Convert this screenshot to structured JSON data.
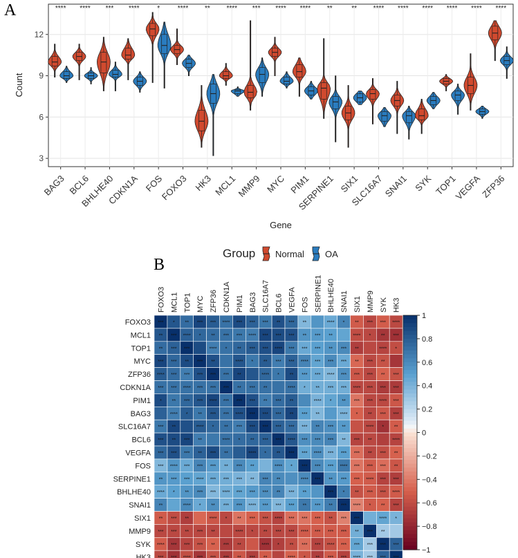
{
  "panel_a_label": "A",
  "panel_b_label": "B",
  "chart_data": [
    {
      "type": "violin",
      "panel": "A",
      "xlabel": "Gene",
      "ylabel": "Count",
      "ylim": [
        2.4,
        14.2
      ],
      "yticks": [
        3,
        6,
        9,
        12
      ],
      "legend_title": "Group",
      "legend_position": "bottom",
      "series": [
        {
          "name": "Normal",
          "color": "#d04a2f"
        },
        {
          "name": "OA",
          "color": "#2a7cbf"
        }
      ],
      "categories": [
        "BAG3",
        "BCL6",
        "BHLHE40",
        "CDKN1A",
        "FOS",
        "FOXO3",
        "HK3",
        "MCL1",
        "MMP9",
        "MYC",
        "PIM1",
        "SERPINE1",
        "SIX1",
        "SLC16A7",
        "SNAI1",
        "SYK",
        "TOP1",
        "VEGFA",
        "ZFP36"
      ],
      "significance": [
        "****",
        "****",
        "***",
        "****",
        "*",
        "****",
        "**",
        "****",
        "***",
        "****",
        "****",
        "**",
        "**",
        "****",
        "****",
        "****",
        "****",
        "****",
        "****"
      ],
      "normal": [
        {
          "min": 8.9,
          "q1": 9.7,
          "median": 10.0,
          "q3": 10.4,
          "max": 11.3
        },
        {
          "min": 8.7,
          "q1": 10.1,
          "median": 10.4,
          "q3": 10.7,
          "max": 11.3
        },
        {
          "min": 7.9,
          "q1": 9.2,
          "median": 10.0,
          "q3": 10.7,
          "max": 11.8
        },
        {
          "min": 8.7,
          "q1": 10.2,
          "median": 10.5,
          "q3": 11.0,
          "max": 11.7
        },
        {
          "min": 8.5,
          "q1": 11.9,
          "median": 12.4,
          "q3": 12.8,
          "max": 13.6
        },
        {
          "min": 9.8,
          "q1": 10.6,
          "median": 10.9,
          "q3": 11.2,
          "max": 12.4
        },
        {
          "min": 3.8,
          "q1": 5.0,
          "median": 5.7,
          "q3": 6.5,
          "max": 8.3
        },
        {
          "min": 8.3,
          "q1": 8.8,
          "median": 9.0,
          "q3": 9.3,
          "max": 9.9
        },
        {
          "min": 6.5,
          "q1": 7.4,
          "median": 7.8,
          "q3": 8.3,
          "max": 13.0
        },
        {
          "min": 9.0,
          "q1": 10.4,
          "median": 10.7,
          "q3": 11.0,
          "max": 11.8
        },
        {
          "min": 7.5,
          "q1": 8.9,
          "median": 9.3,
          "q3": 9.8,
          "max": 10.3
        },
        {
          "min": 5.9,
          "q1": 7.3,
          "median": 8.1,
          "q3": 8.5,
          "max": 11.7
        },
        {
          "min": 3.8,
          "q1": 5.8,
          "median": 6.3,
          "q3": 6.8,
          "max": 8.3
        },
        {
          "min": 5.5,
          "q1": 7.3,
          "median": 7.7,
          "q3": 8.0,
          "max": 8.8
        },
        {
          "min": 4.8,
          "q1": 6.8,
          "median": 7.2,
          "q3": 7.6,
          "max": 8.6
        },
        {
          "min": 4.8,
          "q1": 5.8,
          "median": 6.1,
          "q3": 6.6,
          "max": 7.3
        },
        {
          "min": 7.9,
          "q1": 8.4,
          "median": 8.6,
          "q3": 8.8,
          "max": 9.1
        },
        {
          "min": 6.5,
          "q1": 7.7,
          "median": 8.3,
          "q3": 8.9,
          "max": 10.6
        },
        {
          "min": 10.1,
          "q1": 11.6,
          "median": 12.1,
          "q3": 12.6,
          "max": 13.0
        }
      ],
      "oa": [
        {
          "min": 8.5,
          "q1": 8.8,
          "median": 9.0,
          "q3": 9.3,
          "max": 9.7
        },
        {
          "min": 8.4,
          "q1": 8.8,
          "median": 9.0,
          "q3": 9.2,
          "max": 9.6
        },
        {
          "min": 7.9,
          "q1": 8.9,
          "median": 9.1,
          "q3": 9.4,
          "max": 10.0
        },
        {
          "min": 7.8,
          "q1": 8.3,
          "median": 8.6,
          "q3": 8.9,
          "max": 9.3
        },
        {
          "min": 8.1,
          "q1": 10.6,
          "median": 11.2,
          "q3": 12.0,
          "max": 12.9
        },
        {
          "min": 9.0,
          "q1": 9.6,
          "median": 9.9,
          "q3": 10.2,
          "max": 10.5
        },
        {
          "min": 3.2,
          "q1": 7.0,
          "median": 7.7,
          "q3": 8.4,
          "max": 9.1
        },
        {
          "min": 7.5,
          "q1": 7.7,
          "median": 7.9,
          "q3": 8.0,
          "max": 8.2
        },
        {
          "min": 7.5,
          "q1": 8.5,
          "median": 9.1,
          "q3": 9.6,
          "max": 10.3
        },
        {
          "min": 8.1,
          "q1": 8.4,
          "median": 8.6,
          "q3": 8.9,
          "max": 9.3
        },
        {
          "min": 7.3,
          "q1": 7.6,
          "median": 7.9,
          "q3": 8.2,
          "max": 8.6
        },
        {
          "min": 4.2,
          "q1": 6.6,
          "median": 7.1,
          "q3": 7.5,
          "max": 9.0
        },
        {
          "min": 6.9,
          "q1": 7.1,
          "median": 7.4,
          "q3": 7.7,
          "max": 7.9
        },
        {
          "min": 5.3,
          "q1": 5.7,
          "median": 6.1,
          "q3": 6.4,
          "max": 6.7
        },
        {
          "min": 4.4,
          "q1": 5.6,
          "median": 6.1,
          "q3": 6.4,
          "max": 6.8
        },
        {
          "min": 6.6,
          "q1": 6.9,
          "median": 7.2,
          "q3": 7.5,
          "max": 7.8
        },
        {
          "min": 6.2,
          "q1": 7.2,
          "median": 7.6,
          "q3": 7.9,
          "max": 8.4
        },
        {
          "min": 5.9,
          "q1": 6.2,
          "median": 6.4,
          "q3": 6.6,
          "max": 6.8
        },
        {
          "min": 8.8,
          "q1": 9.8,
          "median": 10.1,
          "q3": 10.4,
          "max": 11.1
        }
      ]
    },
    {
      "type": "heatmap",
      "panel": "B",
      "genes": [
        "FOXO3",
        "MCL1",
        "TOP1",
        "MYC",
        "ZFP36",
        "CDKN1A",
        "PIM1",
        "BAG3",
        "SLC16A7",
        "BCL6",
        "VEGFA",
        "FOS",
        "SERPINE1",
        "BHLHE40",
        "SNAI1",
        "SIX1",
        "MMP9",
        "SYK",
        "HK3"
      ],
      "groups": [
        0,
        0,
        0,
        0,
        0,
        0,
        0,
        0,
        0,
        0,
        0,
        1,
        1,
        1,
        1,
        2,
        2,
        3,
        3
      ],
      "group_corr": [
        [
          0.78,
          0.5,
          -0.55,
          -0.62
        ],
        [
          0.5,
          0.55,
          -0.45,
          -0.55
        ],
        [
          -0.55,
          -0.45,
          0.5,
          0.35
        ],
        [
          -0.62,
          -0.55,
          0.35,
          0.7
        ]
      ],
      "sig_pattern": [
        "****",
        "***",
        "***",
        "**",
        "***",
        "*",
        "**",
        "***",
        "",
        "***",
        "**",
        "***",
        "****"
      ],
      "colorbar_ticks": [
        "1",
        "0.8",
        "0.6",
        "0.4",
        "0.2",
        "0",
        "−0.2",
        "−0.4",
        "−0.6",
        "−0.8",
        "−1"
      ],
      "colorbar_limits": [
        -1,
        1
      ],
      "diagonal_sig": "***"
    }
  ]
}
